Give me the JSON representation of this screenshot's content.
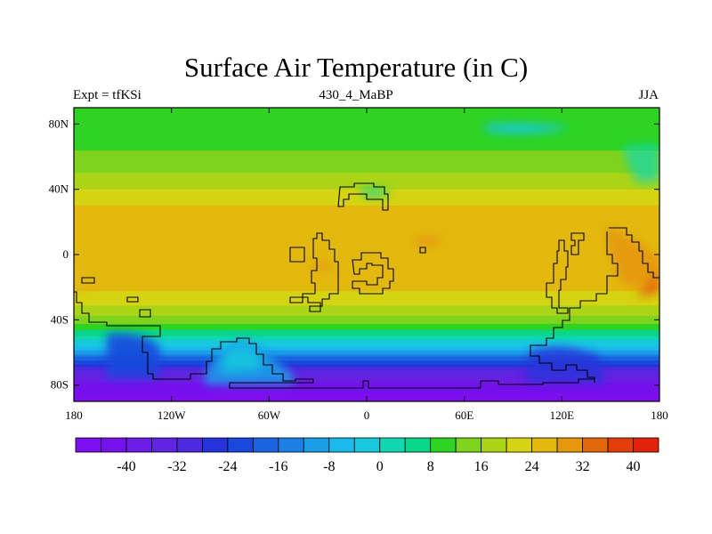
{
  "title": "Surface Air Temperature (in C)",
  "subtitle_left": "Expt = tfKSi",
  "subtitle_center": "430_4_MaBP",
  "subtitle_right": "JJA",
  "x_axis": {
    "range": [
      -180,
      180
    ],
    "ticks": [
      {
        "value": -180,
        "label": "180"
      },
      {
        "value": -120,
        "label": "120W"
      },
      {
        "value": -60,
        "label": "60W"
      },
      {
        "value": 0,
        "label": "0"
      },
      {
        "value": 60,
        "label": "60E"
      },
      {
        "value": 120,
        "label": "120E"
      },
      {
        "value": 180,
        "label": "180"
      }
    ]
  },
  "y_axis": {
    "range": [
      -90,
      90
    ],
    "ticks": [
      {
        "value": 80,
        "label": "80N"
      },
      {
        "value": 40,
        "label": "40N"
      },
      {
        "value": 0,
        "label": "0"
      },
      {
        "value": -40,
        "label": "40S"
      },
      {
        "value": -80,
        "label": "80S"
      }
    ]
  },
  "colorbar": {
    "levels": [
      -44,
      -40,
      -36,
      -32,
      -28,
      -24,
      -20,
      -16,
      -12,
      -8,
      -4,
      0,
      4,
      8,
      12,
      16,
      20,
      24,
      28,
      32,
      36,
      40,
      44
    ],
    "labels": [
      {
        "value": -40,
        "label": "-40"
      },
      {
        "value": -32,
        "label": "-32"
      },
      {
        "value": -24,
        "label": "-24"
      },
      {
        "value": -16,
        "label": "-16"
      },
      {
        "value": -8,
        "label": "-8"
      },
      {
        "value": 0,
        "label": "0"
      },
      {
        "value": 8,
        "label": "8"
      },
      {
        "value": 16,
        "label": "16"
      },
      {
        "value": 24,
        "label": "24"
      },
      {
        "value": 32,
        "label": "32"
      },
      {
        "value": 40,
        "label": "40"
      }
    ],
    "colors": [
      "#7e0ff0",
      "#7511ea",
      "#6a1ee4",
      "#5f25e1",
      "#4b2ade",
      "#2733da",
      "#1a48dc",
      "#1a64e0",
      "#1b80e4",
      "#1b9de8",
      "#1bb9ec",
      "#18c9de",
      "#10d7b0",
      "#0ad68b",
      "#2ed324",
      "#80d31c",
      "#acd417",
      "#d6d412",
      "#e3b80f",
      "#e5980e",
      "#e2660c",
      "#e23e0a",
      "#e2220a"
    ]
  },
  "temperature_field": [
    {
      "lat": 90,
      "value": 10
    },
    {
      "lat": 80,
      "value": 10
    },
    {
      "lat": 70,
      "value": 12
    },
    {
      "lat": 60,
      "value": 15
    },
    {
      "lat": 50,
      "value": 18
    },
    {
      "lat": 40,
      "value": 22
    },
    {
      "lat": 30,
      "value": 26
    },
    {
      "lat": 20,
      "value": 28
    },
    {
      "lat": 10,
      "value": 28
    },
    {
      "lat": 0,
      "value": 28
    },
    {
      "lat": -10,
      "value": 28
    },
    {
      "lat": -20,
      "value": 27
    },
    {
      "lat": -30,
      "value": 23
    },
    {
      "lat": -40,
      "value": 16
    },
    {
      "lat": -50,
      "value": 6
    },
    {
      "lat": -60,
      "value": -8
    },
    {
      "lat": -70,
      "value": -28
    },
    {
      "lat": -80,
      "value": -40
    },
    {
      "lat": -90,
      "value": -44
    }
  ],
  "outline_color": "#000000"
}
